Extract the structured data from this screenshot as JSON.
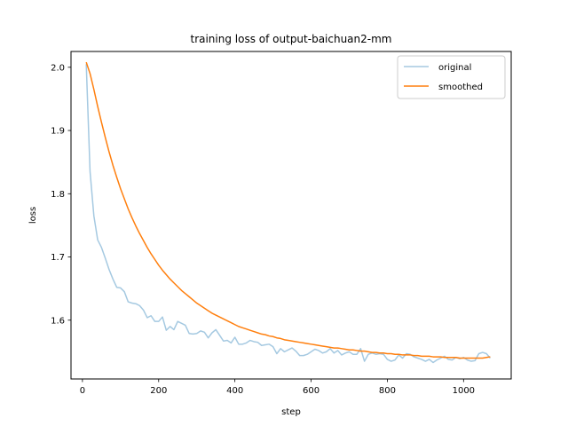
{
  "chart_data": {
    "type": "line",
    "title": "training loss of output-baichuan2-mm",
    "xlabel": "step",
    "ylabel": "loss",
    "xlim": [
      -30,
      1125
    ],
    "ylim": [
      1.507,
      2.025
    ],
    "xticks": [
      0,
      200,
      400,
      600,
      800,
      1000
    ],
    "yticks": [
      1.6,
      1.7,
      1.8,
      1.9,
      2.0
    ],
    "grid": false,
    "legend_position": "top-right",
    "series": [
      {
        "name": "original",
        "color": "#1f77b4",
        "opacity": 0.4,
        "x": [
          10,
          20,
          30,
          40,
          50,
          60,
          70,
          80,
          90,
          100,
          110,
          120,
          130,
          140,
          150,
          160,
          170,
          180,
          190,
          200,
          210,
          220,
          230,
          240,
          250,
          260,
          270,
          280,
          290,
          300,
          310,
          320,
          330,
          340,
          350,
          360,
          370,
          380,
          390,
          400,
          410,
          420,
          430,
          440,
          450,
          460,
          470,
          480,
          490,
          500,
          510,
          520,
          530,
          540,
          550,
          560,
          570,
          580,
          590,
          600,
          610,
          620,
          630,
          640,
          650,
          660,
          670,
          680,
          690,
          700,
          710,
          720,
          730,
          740,
          750,
          760,
          770,
          780,
          790,
          800,
          810,
          820,
          830,
          840,
          850,
          860,
          870,
          880,
          890,
          900,
          910,
          920,
          930,
          940,
          950,
          960,
          970,
          980,
          990,
          1000,
          1010,
          1020,
          1030,
          1040,
          1050,
          1060,
          1070
        ],
        "y": [
          2.005,
          1.835,
          1.765,
          1.727,
          1.715,
          1.698,
          1.68,
          1.665,
          1.652,
          1.651,
          1.645,
          1.629,
          1.627,
          1.626,
          1.623,
          1.616,
          1.604,
          1.607,
          1.598,
          1.598,
          1.605,
          1.584,
          1.59,
          1.585,
          1.598,
          1.595,
          1.592,
          1.579,
          1.578,
          1.579,
          1.583,
          1.581,
          1.572,
          1.58,
          1.585,
          1.576,
          1.567,
          1.568,
          1.564,
          1.573,
          1.562,
          1.562,
          1.564,
          1.568,
          1.566,
          1.565,
          1.56,
          1.561,
          1.562,
          1.558,
          1.547,
          1.555,
          1.55,
          1.553,
          1.556,
          1.551,
          1.544,
          1.544,
          1.546,
          1.55,
          1.554,
          1.552,
          1.548,
          1.55,
          1.555,
          1.548,
          1.552,
          1.545,
          1.548,
          1.55,
          1.546,
          1.546,
          1.555,
          1.535,
          1.546,
          1.548,
          1.546,
          1.547,
          1.546,
          1.538,
          1.535,
          1.537,
          1.545,
          1.54,
          1.547,
          1.546,
          1.542,
          1.54,
          1.538,
          1.535,
          1.538,
          1.533,
          1.537,
          1.54,
          1.543,
          1.538,
          1.537,
          1.541,
          1.539,
          1.541,
          1.537,
          1.535,
          1.536,
          1.547,
          1.549,
          1.547,
          1.54
        ]
      },
      {
        "name": "smoothed",
        "color": "#ff7f0e",
        "opacity": 1,
        "x": [
          10,
          20,
          30,
          40,
          50,
          60,
          70,
          80,
          90,
          100,
          110,
          120,
          130,
          140,
          150,
          160,
          170,
          180,
          190,
          200,
          210,
          220,
          230,
          240,
          250,
          260,
          270,
          280,
          290,
          300,
          310,
          320,
          330,
          340,
          350,
          360,
          370,
          380,
          390,
          400,
          410,
          420,
          430,
          440,
          450,
          460,
          470,
          480,
          490,
          500,
          510,
          520,
          530,
          540,
          550,
          560,
          570,
          580,
          590,
          600,
          610,
          620,
          630,
          640,
          650,
          660,
          670,
          680,
          690,
          700,
          710,
          720,
          730,
          740,
          750,
          760,
          770,
          780,
          790,
          800,
          810,
          820,
          830,
          840,
          850,
          860,
          870,
          880,
          890,
          900,
          910,
          920,
          930,
          940,
          950,
          960,
          970,
          980,
          990,
          1000,
          1010,
          1020,
          1030,
          1040,
          1050,
          1060,
          1070
        ],
        "y": [
          2.008,
          1.99,
          1.965,
          1.938,
          1.913,
          1.889,
          1.866,
          1.845,
          1.826,
          1.808,
          1.792,
          1.776,
          1.762,
          1.749,
          1.737,
          1.726,
          1.715,
          1.705,
          1.696,
          1.687,
          1.679,
          1.672,
          1.665,
          1.659,
          1.653,
          1.647,
          1.642,
          1.637,
          1.632,
          1.627,
          1.623,
          1.619,
          1.615,
          1.611,
          1.608,
          1.605,
          1.602,
          1.599,
          1.596,
          1.593,
          1.59,
          1.588,
          1.586,
          1.584,
          1.582,
          1.58,
          1.578,
          1.577,
          1.575,
          1.574,
          1.572,
          1.571,
          1.569,
          1.568,
          1.567,
          1.566,
          1.565,
          1.564,
          1.563,
          1.562,
          1.561,
          1.56,
          1.559,
          1.558,
          1.557,
          1.556,
          1.556,
          1.555,
          1.554,
          1.553,
          1.553,
          1.552,
          1.551,
          1.551,
          1.55,
          1.549,
          1.549,
          1.548,
          1.548,
          1.547,
          1.547,
          1.546,
          1.546,
          1.545,
          1.545,
          1.545,
          1.544,
          1.544,
          1.543,
          1.543,
          1.543,
          1.542,
          1.542,
          1.542,
          1.541,
          1.541,
          1.541,
          1.541,
          1.54,
          1.54,
          1.54,
          1.54,
          1.54,
          1.54,
          1.54,
          1.541,
          1.542
        ]
      }
    ]
  }
}
